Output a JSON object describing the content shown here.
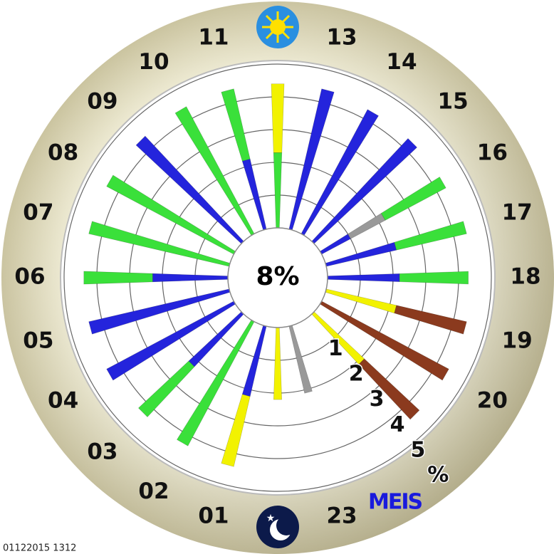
{
  "chart_data": {
    "type": "polar_bar",
    "center_label": "8%",
    "categories": [
      null,
      "01",
      "02",
      "03",
      "04",
      "05",
      "06",
      "07",
      "08",
      "09",
      "10",
      "11",
      null,
      "13",
      "14",
      "15",
      "16",
      "17",
      "18",
      "19",
      "20",
      null,
      null,
      "23"
    ],
    "bars": [
      {
        "segments": [
          {
            "color": "#f2f200",
            "value": 2.2
          }
        ]
      },
      {
        "segments": [
          {
            "color": "#2424dc",
            "value": 2.2
          },
          {
            "color": "#f2f200",
            "value": 2.2
          }
        ]
      },
      {
        "segments": [
          {
            "color": "#3ae03a",
            "value": 4.3
          }
        ]
      },
      {
        "segments": [
          {
            "color": "#2424dc",
            "value": 2.2
          },
          {
            "color": "#3ae03a",
            "value": 2.1
          }
        ]
      },
      {
        "segments": [
          {
            "color": "#2424dc",
            "value": 4.4
          }
        ]
      },
      {
        "segments": [
          {
            "color": "#2424dc",
            "value": 4.4
          }
        ]
      },
      {
        "segments": [
          {
            "color": "#2424dc",
            "value": 2.3
          },
          {
            "color": "#3ae03a",
            "value": 2.1
          }
        ]
      },
      {
        "segments": [
          {
            "color": "#3ae03a",
            "value": 4.4
          }
        ]
      },
      {
        "segments": [
          {
            "color": "#3ae03a",
            "value": 4.4
          }
        ]
      },
      {
        "segments": [
          {
            "color": "#2424dc",
            "value": 4.4
          }
        ]
      },
      {
        "segments": [
          {
            "color": "#3ae03a",
            "value": 4.4
          }
        ]
      },
      {
        "segments": [
          {
            "color": "#2424dc",
            "value": 2.2
          },
          {
            "color": "#3ae03a",
            "value": 2.2
          }
        ]
      },
      {
        "segments": [
          {
            "color": "#3ae03a",
            "value": 2.3
          },
          {
            "color": "#f2f200",
            "value": 2.1
          }
        ]
      },
      {
        "segments": [
          {
            "color": "#2424dc",
            "value": 4.4
          }
        ]
      },
      {
        "segments": [
          {
            "color": "#2424dc",
            "value": 4.3
          }
        ]
      },
      {
        "segments": [
          {
            "color": "#2424dc",
            "value": 4.3
          }
        ]
      },
      {
        "segments": [
          {
            "color": "#2424dc",
            "value": 1.0
          },
          {
            "color": "#999999",
            "value": 1.2
          },
          {
            "color": "#3ae03a",
            "value": 2.1
          }
        ]
      },
      {
        "segments": [
          {
            "color": "#2424dc",
            "value": 2.2
          },
          {
            "color": "#3ae03a",
            "value": 2.2
          }
        ]
      },
      {
        "segments": [
          {
            "color": "#2424dc",
            "value": 2.2
          },
          {
            "color": "#3ae03a",
            "value": 2.1
          }
        ]
      },
      {
        "segments": [
          {
            "color": "#f2f200",
            "value": 2.2
          },
          {
            "color": "#8b3a1e",
            "value": 2.2
          }
        ]
      },
      {
        "segments": [
          {
            "color": "#8b3a1e",
            "value": 4.4
          }
        ]
      },
      {
        "segments": [
          {
            "color": "#f2f200",
            "value": 2.1
          },
          {
            "color": "#8b3a1e",
            "value": 2.3
          }
        ]
      },
      {
        "segments": []
      },
      {
        "segments": [
          {
            "color": "#999999",
            "value": 2.1
          }
        ]
      }
    ],
    "rlim": [
      0,
      5
    ],
    "rticks": [
      1,
      2,
      3,
      4,
      5
    ],
    "r_unit_label": "%",
    "grid": true,
    "logo": "MEIS",
    "timestamp": "01122015 1312"
  }
}
